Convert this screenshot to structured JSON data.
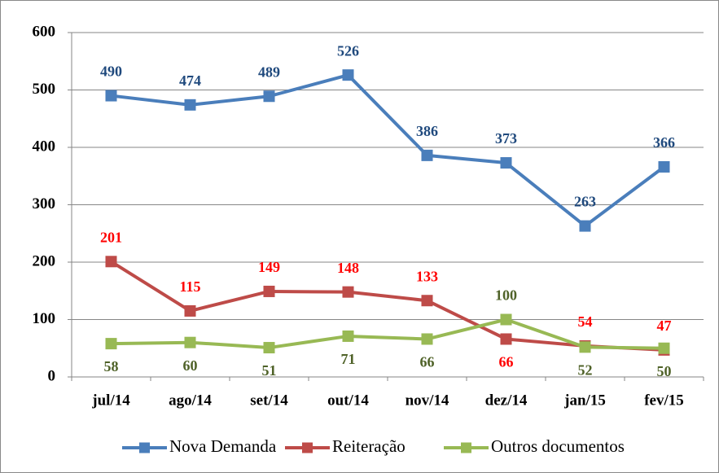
{
  "chart_data": {
    "type": "line",
    "categories": [
      "jul/14",
      "ago/14",
      "set/14",
      "out/14",
      "nov/14",
      "dez/14",
      "jan/15",
      "fev/15"
    ],
    "series": [
      {
        "name": "Nova Demanda",
        "color": "#4a7ebb",
        "label_color": "#1f497d",
        "values": [
          490,
          474,
          489,
          526,
          386,
          373,
          263,
          366
        ]
      },
      {
        "name": "Reiteração",
        "color": "#be4b48",
        "label_color": "#ff0000",
        "values": [
          201,
          115,
          149,
          148,
          133,
          66,
          54,
          47
        ]
      },
      {
        "name": "Outros documentos",
        "color": "#98b954",
        "label_color": "#4f6228",
        "values": [
          58,
          60,
          51,
          71,
          66,
          100,
          52,
          50
        ]
      }
    ],
    "ylim": [
      0,
      600
    ],
    "yticks": [
      0,
      100,
      200,
      300,
      400,
      500,
      600
    ],
    "grid": true,
    "legend": "bottom"
  }
}
